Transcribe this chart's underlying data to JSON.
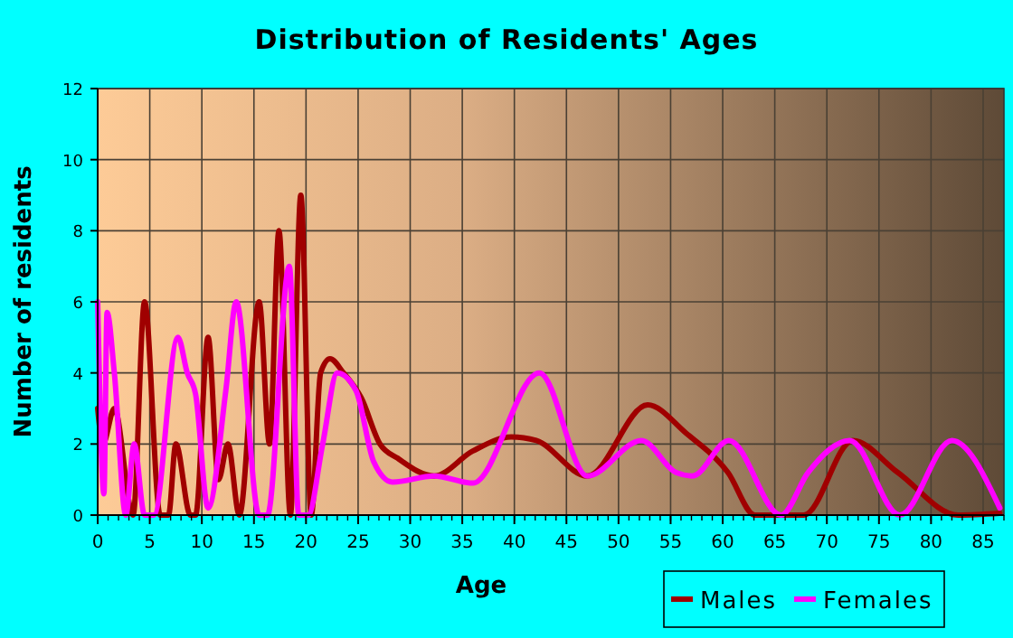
{
  "chart_data": {
    "type": "line",
    "title": "Distribution of Residents' Ages",
    "xlabel": "Age",
    "ylabel": "Number of residents",
    "xlim": [
      0,
      87
    ],
    "xticks": [
      0,
      5,
      10,
      15,
      20,
      25,
      30,
      35,
      40,
      45,
      50,
      55,
      60,
      65,
      70,
      75,
      80,
      85
    ],
    "ylim": [
      0,
      12
    ],
    "yticks": [
      0,
      2,
      4,
      6,
      8,
      10,
      12
    ],
    "grid": true,
    "legend": "bottom right",
    "marker": "none",
    "line_style": "solid",
    "series": [
      {
        "name": "Males",
        "color": "#a00000",
        "x": [
          0,
          0.5,
          1.6,
          3.4,
          4.5,
          6,
          6.8,
          7.5,
          8.9,
          9.4,
          10.6,
          11.6,
          12.5,
          13.6,
          15.5,
          16.5,
          17.4,
          18.5,
          19.5,
          20.5,
          21.4,
          22.3,
          23.6,
          25.3,
          27.1,
          28.8,
          32.3,
          36,
          39.7,
          42.1,
          47,
          52.8,
          56.5,
          60.5,
          63.1,
          67.8,
          72.5,
          76.8,
          82.6,
          86.6
        ],
        "values": [
          3,
          2,
          3,
          0,
          6,
          0,
          0,
          2,
          0,
          0,
          5,
          1,
          2,
          0,
          6,
          2,
          8,
          0,
          9,
          0,
          4,
          4.4,
          4,
          3.3,
          2,
          1.6,
          1.1,
          1.8,
          2.2,
          2.1,
          1.1,
          3.1,
          2.3,
          1.2,
          0,
          0,
          2.1,
          1.2,
          0,
          0.05
        ]
      },
      {
        "name": "Females",
        "color": "#ff00ff",
        "x": [
          0,
          0.6,
          0.9,
          1.6,
          2.7,
          3.5,
          4.5,
          5.4,
          7.7,
          8.6,
          9.4,
          10.6,
          12.3,
          13.3,
          15.5,
          16.3,
          18.4,
          19.3,
          20.2,
          21.6,
          23,
          24.8,
          26.5,
          28.3,
          32.3,
          36,
          42.4,
          47,
          52.2,
          55.5,
          57.1,
          60.6,
          65.6,
          68.2,
          72.2,
          77,
          82,
          86.6
        ],
        "values": [
          6,
          0.6,
          5.7,
          4,
          0,
          2,
          0,
          0,
          5,
          4,
          3.4,
          0.2,
          3.5,
          6,
          0,
          0,
          7,
          0,
          0,
          2,
          4,
          3.5,
          1.5,
          0.93,
          1.1,
          0.9,
          4,
          1.1,
          2.1,
          1.2,
          1.1,
          2.1,
          0,
          1.2,
          2.1,
          0,
          2.1,
          0.2
        ]
      }
    ]
  }
}
